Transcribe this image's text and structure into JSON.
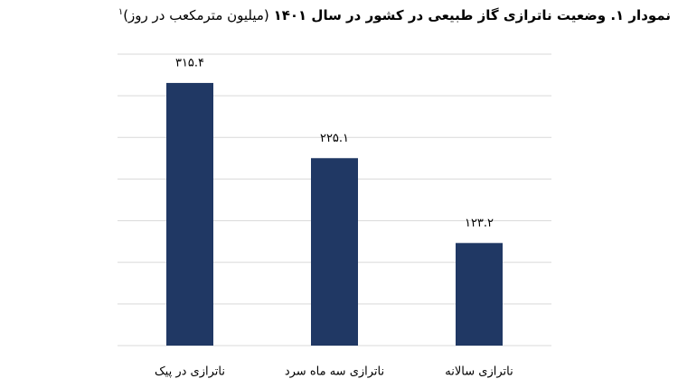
{
  "chart_data": {
    "type": "bar",
    "title": "نمودار ۱. وضعیت ناترازی گاز طبیعی در کشور در سال ۱۴۰۱",
    "unit": "(میلیون مترمکعب در روز)",
    "footnote_mark": "۱",
    "categories": [
      "ناترازی در پیک",
      "ناترازی سه ماه سرد",
      "ناترازی سالانه"
    ],
    "values": [
      315.4,
      225.1,
      123.2
    ],
    "value_labels": [
      "۳۱۵.۴",
      "۲۲۵.۱",
      "۱۲۳.۲"
    ],
    "color": "#203864",
    "ylim": [
      0,
      350
    ],
    "yticks": [
      0,
      50,
      100,
      150,
      200,
      250,
      300,
      350
    ],
    "show_tick_labels": false,
    "grid": true
  }
}
